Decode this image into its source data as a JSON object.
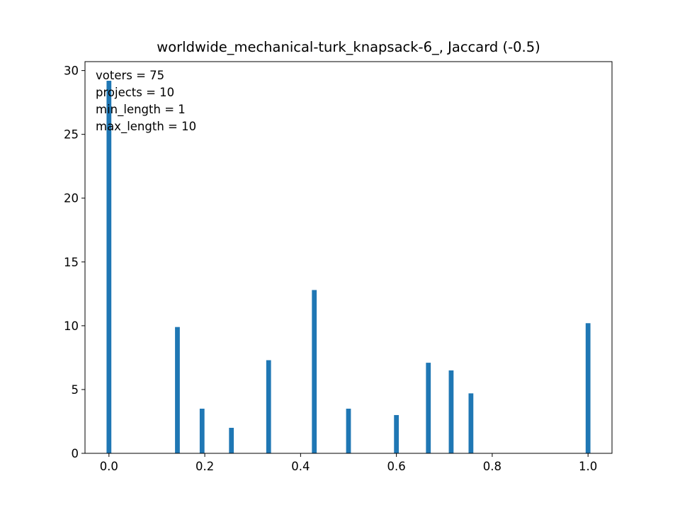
{
  "chart_data": {
    "type": "bar",
    "title": "worldwide_mechanical-turk_knapsack-6_, Jaccard (-0.5)",
    "xlabel": "",
    "ylabel": "",
    "xlim": [
      -0.05,
      1.05
    ],
    "ylim": [
      0,
      30.7
    ],
    "bar_width": 0.01,
    "color": "#1f77b4",
    "x_ticks": [
      0.0,
      0.2,
      0.4,
      0.6,
      0.8,
      1.0
    ],
    "x_tick_labels": [
      "0.0",
      "0.2",
      "0.4",
      "0.6",
      "0.8",
      "1.0"
    ],
    "y_ticks": [
      0,
      5,
      10,
      15,
      20,
      25,
      30
    ],
    "y_tick_labels": [
      "0",
      "5",
      "10",
      "15",
      "20",
      "25",
      "30"
    ],
    "grid": false,
    "bars": [
      {
        "x": 0.0,
        "value": 29.2
      },
      {
        "x": 0.1429,
        "value": 9.9
      },
      {
        "x": 0.1944,
        "value": 3.5
      },
      {
        "x": 0.2556,
        "value": 2.0
      },
      {
        "x": 0.3333,
        "value": 7.3
      },
      {
        "x": 0.4286,
        "value": 12.8
      },
      {
        "x": 0.5,
        "value": 3.5
      },
      {
        "x": 0.6,
        "value": 3.0
      },
      {
        "x": 0.6667,
        "value": 7.1
      },
      {
        "x": 0.7143,
        "value": 6.5
      },
      {
        "x": 0.7556,
        "value": 4.7
      },
      {
        "x": 1.0,
        "value": 10.2
      }
    ],
    "annotations": [
      "voters = 75",
      "projects = 10",
      "min_length = 1",
      "max_length = 10"
    ]
  }
}
